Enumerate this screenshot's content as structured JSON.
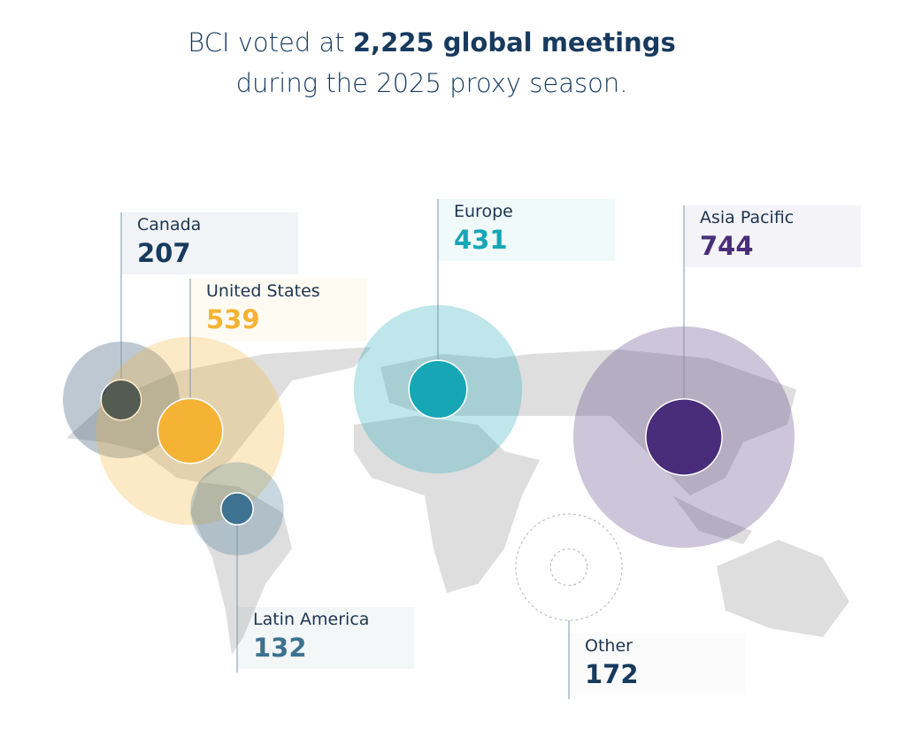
{
  "title": {
    "prefix": "BCI voted at",
    "emphasis": "2,225 global meetings",
    "line2": "during the 2025 proxy season."
  },
  "regions": [
    {
      "name": "Canada",
      "value": 207,
      "color": "#173a5e"
    },
    {
      "name": "United States",
      "value": 539,
      "color": "#f5b335"
    },
    {
      "name": "Europe",
      "value": 431,
      "color": "#16a6b6"
    },
    {
      "name": "Asia Pacific",
      "value": 744,
      "color": "#4a2d7a"
    },
    {
      "name": "Latin America",
      "value": 132,
      "color": "#3d7390"
    },
    {
      "name": "Other",
      "value": 172,
      "color": "#b5b5b5"
    }
  ]
}
